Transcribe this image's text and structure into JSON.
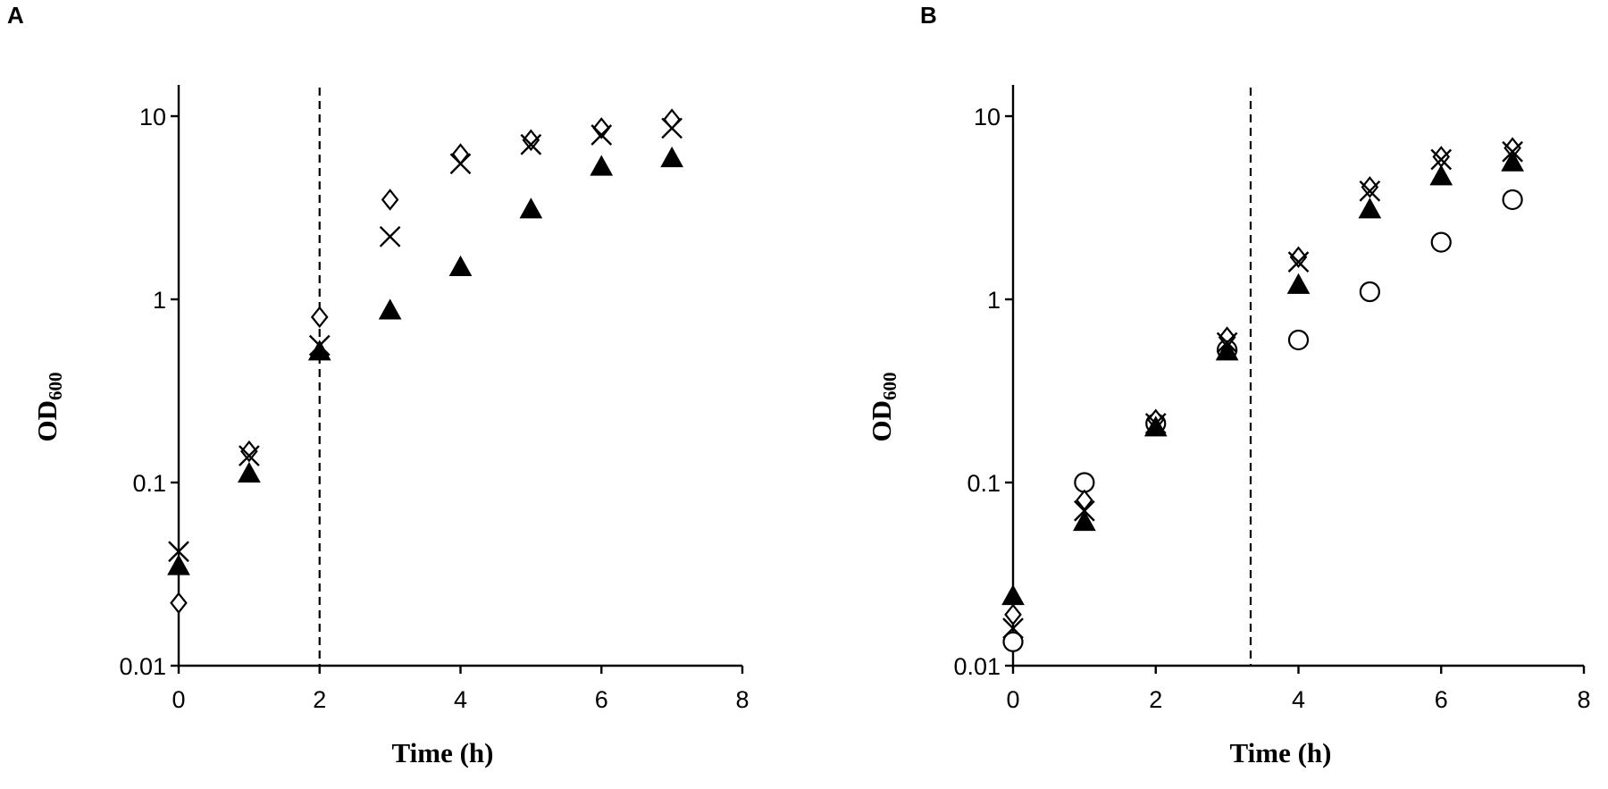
{
  "chart_data": [
    {
      "type": "scatter",
      "panel_label": "A",
      "xlabel": "Time (h)",
      "ylabel": "OD",
      "ylabel_subscript": "600",
      "xlim": [
        0,
        8
      ],
      "ylim": [
        0.01,
        10
      ],
      "yscale": "log",
      "xticks": [
        0,
        2,
        4,
        6,
        8
      ],
      "xtick_labels": [
        "0",
        "2",
        "4",
        "6",
        "8"
      ],
      "yticks": [
        0.01,
        0.1,
        1,
        10
      ],
      "ytick_labels": [
        "0.01",
        "0.1",
        "1",
        "10"
      ],
      "grid": false,
      "vline_x": 2,
      "series": [
        {
          "marker": "diamond-open",
          "x": [
            0,
            1,
            2,
            3,
            4,
            5,
            6,
            7
          ],
          "y": [
            0.022,
            0.148,
            0.8,
            3.5,
            6.2,
            7.4,
            8.6,
            9.6
          ]
        },
        {
          "marker": "x",
          "x": [
            0,
            1,
            2,
            3,
            4,
            5,
            6,
            7
          ],
          "y": [
            0.042,
            0.14,
            0.56,
            2.2,
            5.5,
            7.0,
            7.9,
            8.6
          ]
        },
        {
          "marker": "triangle-filled",
          "x": [
            0,
            1,
            2,
            3,
            4,
            5,
            6,
            7
          ],
          "y": [
            0.035,
            0.112,
            0.52,
            0.87,
            1.5,
            3.1,
            5.3,
            5.9
          ]
        }
      ]
    },
    {
      "type": "scatter",
      "panel_label": "B",
      "xlabel": "Time (h)",
      "ylabel": "OD",
      "ylabel_subscript": "600",
      "xlim": [
        0,
        8
      ],
      "ylim": [
        0.01,
        10
      ],
      "yscale": "log",
      "xticks": [
        0,
        2,
        4,
        6,
        8
      ],
      "xtick_labels": [
        "0",
        "2",
        "4",
        "6",
        "8"
      ],
      "yticks": [
        0.01,
        0.1,
        1,
        10
      ],
      "ytick_labels": [
        "0.01",
        "0.1",
        "1",
        "10"
      ],
      "grid": false,
      "vline_x": 3.33,
      "series": [
        {
          "marker": "circle-open",
          "x": [
            0,
            1,
            2,
            3,
            4,
            5,
            6,
            7
          ],
          "y": [
            0.0135,
            0.1,
            0.21,
            0.53,
            0.6,
            1.1,
            2.05,
            3.5
          ]
        },
        {
          "marker": "diamond-open",
          "x": [
            0,
            1,
            2,
            3,
            4,
            5,
            6,
            7
          ],
          "y": [
            0.019,
            0.08,
            0.22,
            0.62,
            1.7,
            4.1,
            6.0,
            6.7
          ]
        },
        {
          "marker": "x",
          "x": [
            0,
            1,
            2,
            3,
            4,
            5,
            6,
            7
          ],
          "y": [
            0.016,
            0.07,
            0.21,
            0.58,
            1.6,
            3.9,
            5.8,
            6.4
          ]
        },
        {
          "marker": "triangle-filled",
          "x": [
            0,
            1,
            2,
            3,
            4,
            5,
            6,
            7
          ],
          "y": [
            0.024,
            0.061,
            0.2,
            0.52,
            1.2,
            3.1,
            4.7,
            5.6
          ]
        }
      ]
    }
  ]
}
